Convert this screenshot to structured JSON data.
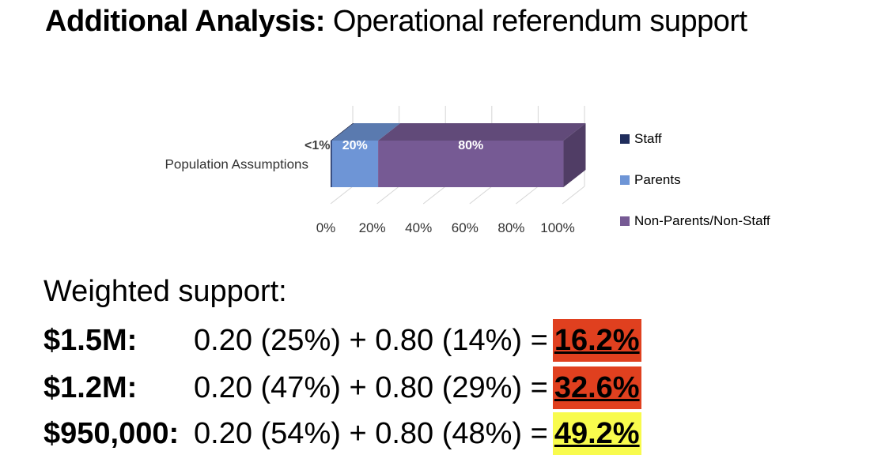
{
  "title": {
    "bold": "Additional Analysis:",
    "rest": "Operational referendum support"
  },
  "chart_data": {
    "type": "bar",
    "stacked": true,
    "orientation": "horizontal",
    "categories": [
      "Population Assumptions"
    ],
    "series": [
      {
        "name": "Staff",
        "values": [
          0.5
        ],
        "label": "<1%",
        "color": "#1f2d5c"
      },
      {
        "name": "Parents",
        "values": [
          20
        ],
        "label": "20%",
        "color": "#6e95d6"
      },
      {
        "name": "Non-Parents/Non-Staff",
        "values": [
          80
        ],
        "label": "80%",
        "color": "#765a94"
      }
    ],
    "x_ticks": [
      "0%",
      "20%",
      "40%",
      "60%",
      "80%",
      "100%"
    ],
    "xlim": [
      0,
      100
    ],
    "grid": true,
    "legend_position": "right"
  },
  "weighted": {
    "heading": "Weighted support:",
    "rows": [
      {
        "label": "$1.5M:",
        "formula": "0.20 (25%) + 0.80 (14%) =",
        "result": "16.2%",
        "highlight": "#e0401f"
      },
      {
        "label": "$1.2M:",
        "formula": "0.20 (47%) + 0.80 (29%) =",
        "result": "32.6%",
        "highlight": "#e0401f"
      },
      {
        "label": "$950,000:",
        "formula": "0.20 (54%) + 0.80 (48%) =",
        "result": "49.2%",
        "highlight": "#f8fb4d"
      }
    ]
  }
}
